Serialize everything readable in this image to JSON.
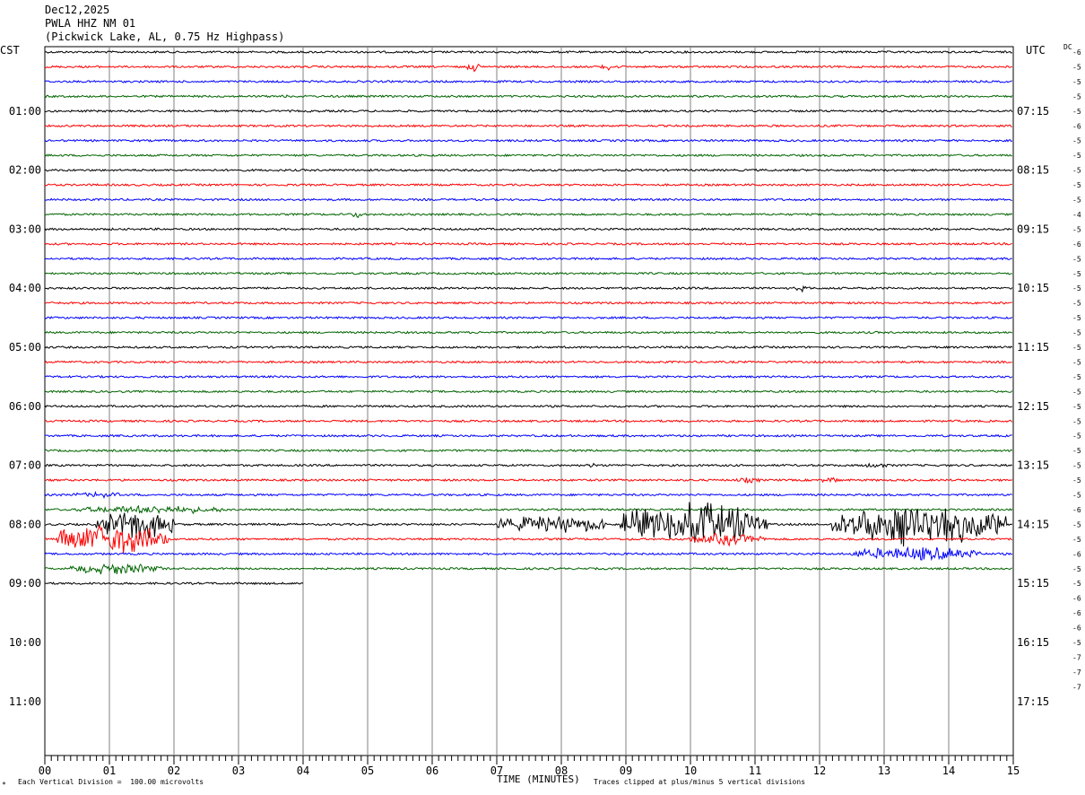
{
  "header": {
    "date": "Dec12,2025",
    "station": "PWLA HHZ NM 01",
    "location": "(Pickwick Lake, AL, 0.75 Hz Highpass)"
  },
  "corner_labels": {
    "left_tz": "CST",
    "right_tz": "UTC",
    "dc_label": "DC"
  },
  "footer": {
    "scale_note": "Each Vertical Division =  100.00 microvolts",
    "clip_note": "Traces clipped at plus/minus 5 vertical divisions",
    "corner_mark": "*"
  },
  "chart_data": {
    "type": "line",
    "xlabel": "TIME (MINUTES)",
    "xlim": [
      0,
      15
    ],
    "x_ticks": [
      "00",
      "01",
      "02",
      "03",
      "04",
      "05",
      "06",
      "07",
      "08",
      "09",
      "10",
      "11",
      "12",
      "13",
      "14",
      "15"
    ],
    "left_hour_labels": [
      "01:00",
      "02:00",
      "03:00",
      "04:00",
      "05:00",
      "06:00",
      "07:00",
      "08:00",
      "09:00",
      "10:00",
      "11:00"
    ],
    "right_hour_labels": [
      "07:15",
      "08:15",
      "09:15",
      "10:15",
      "11:15",
      "12:15",
      "13:15",
      "14:15",
      "15:15",
      "16:15",
      "17:15"
    ],
    "trace_colors": [
      "#000000",
      "#ff0000",
      "#0000ff",
      "#006400"
    ],
    "trace_count": 37,
    "last_trace_minutes": 4,
    "dc_offsets": [
      "-6",
      "-5",
      "-5",
      "-5",
      "-5",
      "-6",
      "-5",
      "-5",
      "-5",
      "-5",
      "-5",
      "-4",
      "-5",
      "-6",
      "-5",
      "-5",
      "-5",
      "-5",
      "-5",
      "-5",
      "-5",
      "-5",
      "-5",
      "-5",
      "-5",
      "-5",
      "-5",
      "-5",
      "-5",
      "-5",
      "-5",
      "-6",
      "-5",
      "-5",
      "-6",
      "-5",
      "-5",
      "-6",
      "-6",
      "-6",
      "-5",
      "-7",
      "-7",
      "-7"
    ],
    "events": [
      {
        "trace": 1,
        "start_min": 6.5,
        "end_min": 6.75,
        "amp": 6
      },
      {
        "trace": 1,
        "start_min": 8.6,
        "end_min": 8.9,
        "amp": 4
      },
      {
        "trace": 3,
        "start_min": 3.6,
        "end_min": 3.9,
        "amp": 2
      },
      {
        "trace": 11,
        "start_min": 4.7,
        "end_min": 4.95,
        "amp": 5
      },
      {
        "trace": 16,
        "start_min": 11.6,
        "end_min": 11.9,
        "amp": 4
      },
      {
        "trace": 28,
        "start_min": 8.3,
        "end_min": 8.6,
        "amp": 4
      },
      {
        "trace": 28,
        "start_min": 12.7,
        "end_min": 13.1,
        "amp": 4
      },
      {
        "trace": 29,
        "start_min": 10.7,
        "end_min": 11.1,
        "amp": 4
      },
      {
        "trace": 29,
        "start_min": 12.0,
        "end_min": 12.4,
        "amp": 4
      },
      {
        "trace": 30,
        "start_min": 0.4,
        "end_min": 1.2,
        "amp": 4
      },
      {
        "trace": 31,
        "start_min": 0.5,
        "end_min": 2.8,
        "amp": 6
      },
      {
        "trace": 32,
        "start_min": 0.8,
        "end_min": 2.0,
        "amp": 22
      },
      {
        "trace": 32,
        "start_min": 7.0,
        "end_min": 8.7,
        "amp": 12
      },
      {
        "trace": 32,
        "start_min": 8.9,
        "end_min": 11.2,
        "amp": 30
      },
      {
        "trace": 32,
        "start_min": 12.2,
        "end_min": 14.9,
        "amp": 30
      },
      {
        "trace": 33,
        "start_min": 0.2,
        "end_min": 1.9,
        "amp": 22
      },
      {
        "trace": 33,
        "start_min": 10.0,
        "end_min": 11.2,
        "amp": 8
      },
      {
        "trace": 34,
        "start_min": 12.5,
        "end_min": 14.5,
        "amp": 10
      },
      {
        "trace": 35,
        "start_min": 0.4,
        "end_min": 1.8,
        "amp": 8
      }
    ]
  }
}
